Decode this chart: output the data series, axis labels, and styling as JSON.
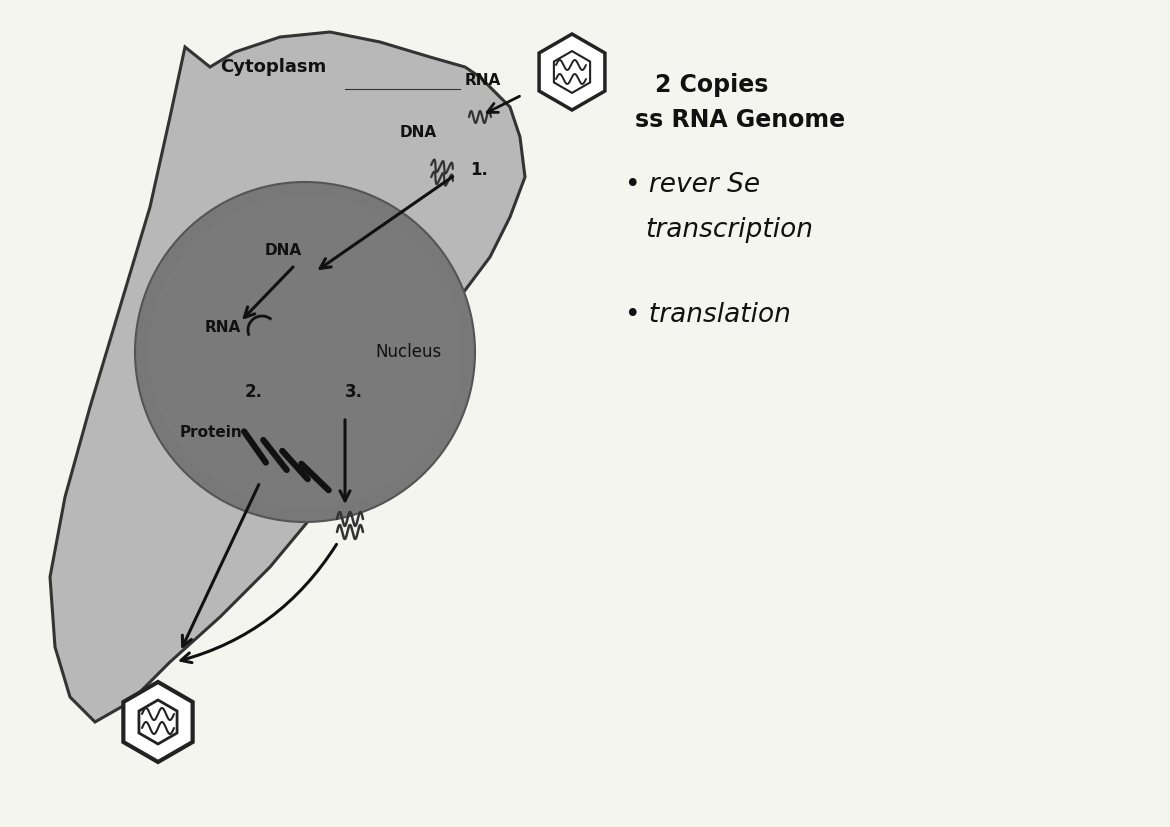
{
  "bg_color": "#f5f5f0",
  "cell_color": "#b8b8b8",
  "cell_edge_color": "#333333",
  "nucleus_color": "#787878",
  "nucleus_edge_color": "#555555",
  "title_right_1": "2 Copies",
  "title_right_2": "ss RNA Genome",
  "bullet1": "• rever Se",
  "bullet1b": "transcription",
  "bullet2": "• translation",
  "label_cytoplasm": "Cytoplasm",
  "label_rna_top": "RNA",
  "label_dna_entry": "DNA",
  "label_dna_nucleus": "DNA",
  "label_rna_nucleus": "RNA",
  "label_nucleus": "Nucleus",
  "label_protein": "Protein",
  "step1": "1.",
  "step2": "2.",
  "step3": "3.",
  "arrow_color": "#111111",
  "text_color": "#111111"
}
